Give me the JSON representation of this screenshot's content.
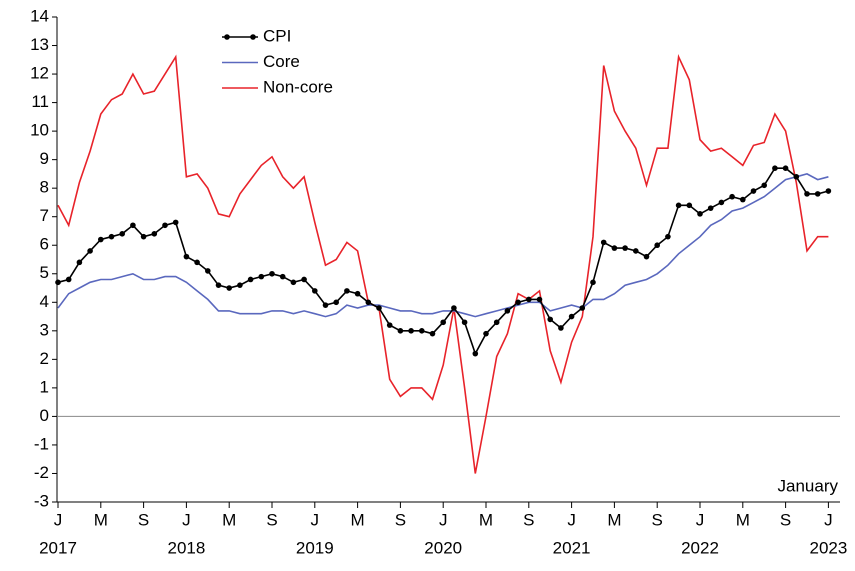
{
  "chart_data": {
    "type": "line",
    "categories": [
      "J",
      null,
      null,
      null,
      "M",
      null,
      null,
      null,
      "S",
      null,
      null,
      null,
      "J",
      null,
      null,
      null,
      "M",
      null,
      null,
      null,
      "S",
      null,
      null,
      null,
      "J",
      null,
      null,
      null,
      "M",
      null,
      null,
      null,
      "S",
      null,
      null,
      null,
      "J",
      null,
      null,
      null,
      "M",
      null,
      null,
      null,
      "S",
      null,
      null,
      null,
      "J",
      null,
      null,
      null,
      "M",
      null,
      null,
      null,
      "S",
      null,
      null,
      null,
      "J",
      null,
      null,
      null,
      "M",
      null,
      null,
      null,
      "S",
      null,
      null,
      null,
      "J"
    ],
    "years": [
      "2017",
      "2018",
      "2019",
      "2020",
      "2021",
      "2022",
      "2023"
    ],
    "annotation": "January",
    "ylim": [
      -3,
      14
    ],
    "yticks": [
      -3,
      -2,
      -1,
      0,
      1,
      2,
      3,
      4,
      5,
      6,
      7,
      8,
      9,
      10,
      11,
      12,
      13,
      14
    ],
    "legend": "top-left",
    "series": [
      {
        "name": "CPI",
        "color": "#000000",
        "marker": true,
        "values": [
          4.7,
          4.8,
          5.4,
          5.8,
          6.2,
          6.3,
          6.4,
          6.7,
          6.3,
          6.4,
          6.7,
          6.8,
          5.6,
          5.4,
          5.1,
          4.6,
          4.5,
          4.6,
          4.8,
          4.9,
          5.0,
          4.9,
          4.7,
          4.8,
          4.4,
          3.9,
          4.0,
          4.4,
          4.3,
          4.0,
          3.8,
          3.2,
          3.0,
          3.0,
          3.0,
          2.9,
          3.3,
          3.8,
          3.3,
          2.2,
          2.9,
          3.3,
          3.7,
          4.0,
          4.1,
          4.1,
          3.4,
          3.1,
          3.5,
          3.8,
          4.7,
          6.1,
          5.9,
          5.9,
          5.8,
          5.6,
          6.0,
          6.3,
          7.4,
          7.4,
          7.1,
          7.3,
          7.5,
          7.7,
          7.6,
          7.9,
          8.1,
          8.7,
          8.7,
          8.4,
          7.8,
          7.8,
          7.9
        ]
      },
      {
        "name": "Core",
        "color": "#5a68be",
        "marker": false,
        "values": [
          3.8,
          4.3,
          4.5,
          4.7,
          4.8,
          4.8,
          4.9,
          5.0,
          4.8,
          4.8,
          4.9,
          4.9,
          4.7,
          4.4,
          4.1,
          3.7,
          3.7,
          3.6,
          3.6,
          3.6,
          3.7,
          3.7,
          3.6,
          3.7,
          3.6,
          3.5,
          3.6,
          3.9,
          3.8,
          3.9,
          3.9,
          3.8,
          3.7,
          3.7,
          3.6,
          3.6,
          3.7,
          3.7,
          3.6,
          3.5,
          3.6,
          3.7,
          3.8,
          3.9,
          4.0,
          4.0,
          3.7,
          3.8,
          3.9,
          3.8,
          4.1,
          4.1,
          4.3,
          4.6,
          4.7,
          4.8,
          5.0,
          5.3,
          5.7,
          6.0,
          6.3,
          6.7,
          6.9,
          7.2,
          7.3,
          7.5,
          7.7,
          8.0,
          8.3,
          8.4,
          8.5,
          8.3,
          8.4
        ]
      },
      {
        "name": "Non-core",
        "color": "#e8232a",
        "marker": false,
        "values": [
          7.4,
          6.7,
          8.2,
          9.3,
          10.6,
          11.1,
          11.3,
          12.0,
          11.3,
          11.4,
          12.0,
          12.6,
          8.4,
          8.5,
          8.0,
          7.1,
          7.0,
          7.8,
          8.3,
          8.8,
          9.1,
          8.4,
          8.0,
          8.4,
          6.8,
          5.3,
          5.5,
          6.1,
          5.8,
          4.0,
          3.8,
          1.3,
          0.7,
          1.0,
          1.0,
          0.6,
          1.8,
          3.8,
          1.0,
          -2.0,
          0.0,
          2.1,
          2.9,
          4.3,
          4.1,
          4.4,
          2.3,
          1.2,
          2.6,
          3.5,
          6.3,
          12.3,
          10.7,
          10.0,
          9.4,
          8.1,
          9.4,
          9.4,
          12.6,
          11.8,
          9.7,
          9.3,
          9.4,
          9.1,
          8.8,
          9.5,
          9.6,
          10.6,
          10.0,
          8.2,
          5.8,
          6.3,
          6.3
        ]
      }
    ]
  }
}
